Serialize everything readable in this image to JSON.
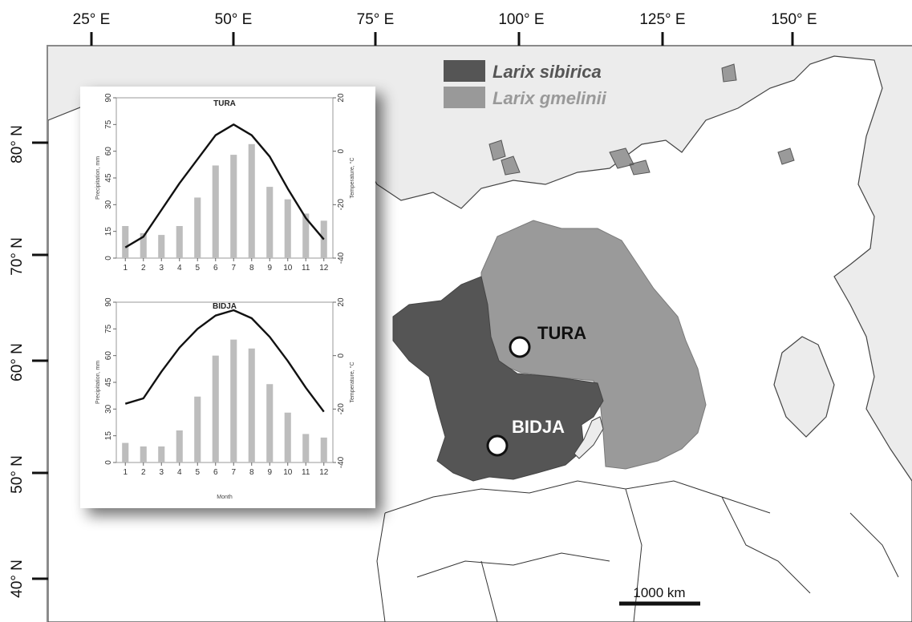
{
  "map": {
    "longitude_labels": [
      "25° E",
      "50° E",
      "75° E",
      "100° E",
      "125° E",
      "150° E"
    ],
    "latitude_labels": [
      "80° N",
      "70° N",
      "60° N",
      "50° N",
      "40° N"
    ],
    "legend": [
      {
        "label": "Larix sibirica",
        "color": "#555555"
      },
      {
        "label": "Larix gmelinii",
        "color": "#999999"
      }
    ],
    "sites": [
      {
        "name": "TURA"
      },
      {
        "name": "BIDJA"
      }
    ],
    "scale_bar_label": "1000 km"
  },
  "chart_data": [
    {
      "type": "bar",
      "title": "TURA",
      "categories": [
        "1",
        "2",
        "3",
        "4",
        "5",
        "6",
        "7",
        "8",
        "9",
        "10",
        "11",
        "12"
      ],
      "series": [
        {
          "values": [
            18,
            14,
            13,
            18,
            34,
            52,
            58,
            64,
            40,
            33,
            25,
            21
          ]
        },
        {
          "type": "line",
          "values": [
            -36,
            -32,
            -22,
            -12,
            -3,
            6,
            10,
            6,
            -2,
            -14,
            -25,
            -33
          ]
        }
      ],
      "ylabel": "Precipitation, mm",
      "y2label": "Temperature, °C",
      "ylim": [
        0,
        90
      ],
      "y2lim": [
        -40,
        20
      ],
      "yticks": [
        "0",
        "15",
        "30",
        "45",
        "60",
        "75",
        "90"
      ],
      "y2ticks": [
        "-40",
        "-20",
        "0",
        "20"
      ]
    },
    {
      "type": "bar",
      "title": "BIDJA",
      "categories": [
        "1",
        "2",
        "3",
        "4",
        "5",
        "6",
        "7",
        "8",
        "9",
        "10",
        "11",
        "12"
      ],
      "series": [
        {
          "values": [
            11,
            9,
            9,
            18,
            37,
            60,
            69,
            64,
            44,
            28,
            16,
            14
          ]
        },
        {
          "type": "line",
          "values": [
            -18,
            -16,
            -6,
            3,
            10,
            15,
            17,
            14,
            7,
            -2,
            -12,
            -21
          ]
        }
      ],
      "ylabel": "Precipitation, mm",
      "y2label": "Temperature, °C",
      "xlabel": "Month",
      "ylim": [
        0,
        90
      ],
      "y2lim": [
        -40,
        20
      ],
      "yticks": [
        "0",
        "15",
        "30",
        "45",
        "60",
        "75",
        "90"
      ],
      "y2ticks": [
        "-40",
        "-20",
        "0",
        "20"
      ]
    }
  ]
}
